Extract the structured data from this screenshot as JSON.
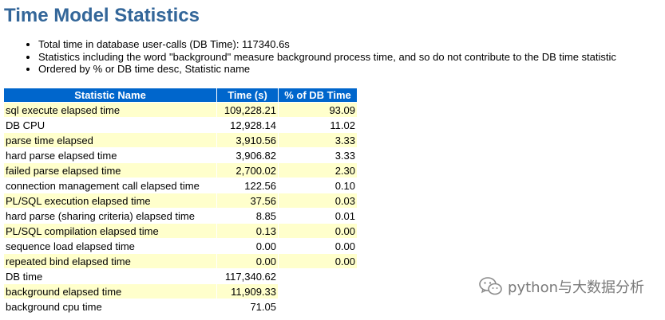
{
  "heading": "Time Model Statistics",
  "notes": [
    "Total time in database user-calls (DB Time): 117340.6s",
    "Statistics including the word \"background\" measure background process time, and so do not contribute to the DB time statistic",
    "Ordered by % or DB time desc, Statistic name"
  ],
  "table": {
    "headers": [
      "Statistic Name",
      "Time (s)",
      "% of DB Time"
    ],
    "rows": [
      {
        "name": "sql execute elapsed time",
        "time": "109,228.21",
        "pct": "93.09"
      },
      {
        "name": "DB CPU",
        "time": "12,928.14",
        "pct": "11.02"
      },
      {
        "name": "parse time elapsed",
        "time": "3,910.56",
        "pct": "3.33"
      },
      {
        "name": "hard parse elapsed time",
        "time": "3,906.82",
        "pct": "3.33"
      },
      {
        "name": "failed parse elapsed time",
        "time": "2,700.02",
        "pct": "2.30"
      },
      {
        "name": "connection management call elapsed time",
        "time": "122.56",
        "pct": "0.10"
      },
      {
        "name": "PL/SQL execution elapsed time",
        "time": "37.56",
        "pct": "0.03"
      },
      {
        "name": "hard parse (sharing criteria) elapsed time",
        "time": "8.85",
        "pct": "0.01"
      },
      {
        "name": "PL/SQL compilation elapsed time",
        "time": "0.13",
        "pct": "0.00"
      },
      {
        "name": "sequence load elapsed time",
        "time": "0.00",
        "pct": "0.00"
      },
      {
        "name": "repeated bind elapsed time",
        "time": "0.00",
        "pct": "0.00"
      },
      {
        "name": "DB time",
        "time": "117,340.62",
        "pct": ""
      },
      {
        "name": "background elapsed time",
        "time": "11,909.33",
        "pct": ""
      },
      {
        "name": "background cpu time",
        "time": "71.05",
        "pct": ""
      }
    ]
  },
  "watermark": {
    "text": "python与大数据分析",
    "icon": "wechat-icon"
  },
  "colors": {
    "heading": "#336699",
    "header_bg": "#0066cc",
    "odd_row_bg": "#ffffcc",
    "even_row_bg": "#ffffff",
    "watermark": "#7a7a7a"
  }
}
